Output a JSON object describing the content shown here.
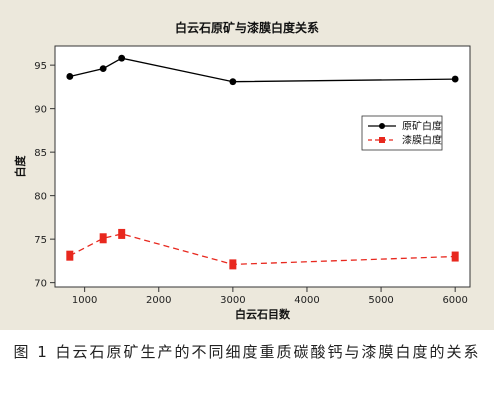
{
  "chart_data": {
    "type": "line",
    "title": "白云石原矿与漆膜白度关系",
    "xlabel": "白云石目数",
    "ylabel": "白度",
    "xlim": [
      600,
      6200
    ],
    "ylim": [
      69.5,
      97.2
    ],
    "xticks": [
      1000,
      2000,
      3000,
      4000,
      5000,
      6000
    ],
    "xtick_labels": [
      "1000",
      "2000",
      "3000",
      "4000",
      "5000",
      "6000"
    ],
    "yticks": [
      70,
      75,
      80,
      85,
      90,
      95
    ],
    "ytick_labels": [
      "70",
      "75",
      "80",
      "85",
      "90",
      "95"
    ],
    "grid": false,
    "legend_position": "right",
    "series": [
      {
        "name": "原矿白度",
        "color": "#000000",
        "line_style": "solid",
        "marker": "circle",
        "points": [
          {
            "x": 800,
            "y": 93.7
          },
          {
            "x": 1250,
            "y": 94.6
          },
          {
            "x": 1500,
            "y": 95.8
          },
          {
            "x": 3000,
            "y": 93.1
          },
          {
            "x": 6000,
            "y": 93.4
          }
        ]
      },
      {
        "name": "漆膜白度",
        "color": "#e8281e",
        "line_style": "dashed",
        "marker": "square",
        "points": [
          {
            "x": 800,
            "y": 73.1
          },
          {
            "x": 1250,
            "y": 75.1
          },
          {
            "x": 1500,
            "y": 75.6
          },
          {
            "x": 3000,
            "y": 72.1
          },
          {
            "x": 6000,
            "y": 73.0
          }
        ]
      }
    ]
  },
  "caption": "图 1  白云石原矿生产的不同细度重质碳酸钙与漆膜白度的关系"
}
